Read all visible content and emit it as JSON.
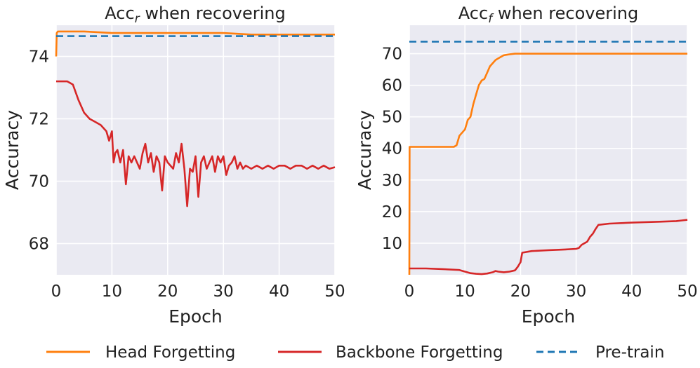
{
  "legend": {
    "items": [
      {
        "label": "Head Forgetting",
        "color": "#ff7f0e",
        "dash": false
      },
      {
        "label": "Backbone Forgetting",
        "color": "#d62728",
        "dash": false
      },
      {
        "label": "Pre-train",
        "color": "#1f77b4",
        "dash": true
      }
    ]
  },
  "chart_data": [
    {
      "type": "line",
      "title": "Accr when recovering",
      "title_main": "Acc",
      "title_sub": "r",
      "title_rest": " when recovering",
      "xlabel": "Epoch",
      "ylabel": "Accuracy",
      "xlim": [
        0,
        50
      ],
      "ylim": [
        67.0,
        75.0
      ],
      "xticks": [
        0,
        10,
        20,
        30,
        40,
        50
      ],
      "yticks": [
        68,
        70,
        72,
        74
      ],
      "grid": true,
      "series": [
        {
          "name": "Head Forgetting",
          "color": "#ff7f0e",
          "dash": false,
          "x": [
            0,
            0.1,
            0.3,
            5,
            10,
            15,
            20,
            25,
            30,
            35,
            40,
            45,
            50
          ],
          "y": [
            74.0,
            74.75,
            74.8,
            74.8,
            74.75,
            74.75,
            74.75,
            74.75,
            74.75,
            74.7,
            74.7,
            74.7,
            74.7
          ]
        },
        {
          "name": "Backbone Forgetting",
          "color": "#d62728",
          "dash": false,
          "x": [
            0,
            1,
            2,
            3,
            4,
            5,
            6,
            7,
            8,
            9,
            9.5,
            10,
            10.3,
            10.6,
            11,
            11.5,
            12,
            12.5,
            13,
            13.5,
            14,
            15,
            15.5,
            16,
            16.5,
            17,
            17.5,
            18,
            18.5,
            19,
            19.5,
            20,
            21,
            21.5,
            22,
            22.5,
            23,
            23.5,
            24,
            24.5,
            25,
            25.5,
            26,
            26.5,
            27,
            28,
            28.5,
            29,
            29.5,
            30,
            30.5,
            31,
            31.5,
            32,
            32.5,
            33,
            33.5,
            34,
            35,
            36,
            37,
            38,
            39,
            40,
            41,
            42,
            43,
            44,
            45,
            46,
            47,
            48,
            49,
            50
          ],
          "y": [
            73.2,
            73.2,
            73.2,
            73.1,
            72.6,
            72.2,
            72.0,
            71.9,
            71.8,
            71.6,
            71.3,
            71.6,
            70.6,
            70.9,
            71.0,
            70.6,
            71.0,
            69.9,
            70.8,
            70.6,
            70.8,
            70.4,
            70.9,
            71.2,
            70.6,
            70.9,
            70.3,
            70.8,
            70.6,
            69.7,
            70.8,
            70.6,
            70.4,
            70.9,
            70.6,
            71.2,
            70.4,
            69.2,
            70.4,
            70.3,
            70.8,
            69.5,
            70.6,
            70.8,
            70.4,
            70.8,
            70.3,
            70.8,
            70.6,
            70.8,
            70.2,
            70.5,
            70.6,
            70.8,
            70.4,
            70.6,
            70.4,
            70.5,
            70.4,
            70.5,
            70.4,
            70.5,
            70.4,
            70.5,
            70.5,
            70.4,
            70.5,
            70.5,
            70.4,
            70.5,
            70.4,
            70.5,
            70.4,
            70.45
          ]
        },
        {
          "name": "Pre-train",
          "color": "#1f77b4",
          "dash": true,
          "x": [
            0,
            50
          ],
          "y": [
            74.65,
            74.65
          ]
        }
      ]
    },
    {
      "type": "line",
      "title": "Accf when recovering",
      "title_main": "Acc",
      "title_sub": "f",
      "title_rest": " when recovering",
      "xlabel": "Epoch",
      "ylabel": "Accuracy",
      "xlim": [
        0,
        50
      ],
      "ylim": [
        0,
        79
      ],
      "xticks": [
        0,
        10,
        20,
        30,
        40,
        50
      ],
      "yticks": [
        10,
        20,
        30,
        40,
        50,
        60,
        70
      ],
      "grid": true,
      "series": [
        {
          "name": "Head Forgetting",
          "color": "#ff7f0e",
          "dash": false,
          "x": [
            0,
            0.05,
            0.2,
            8,
            8.5,
            9,
            10,
            10.5,
            11,
            11.5,
            12,
            12.5,
            13,
            13.5,
            14,
            14.5,
            15,
            15.5,
            16,
            17,
            18,
            19,
            20,
            21,
            25,
            30,
            35,
            40,
            45,
            50
          ],
          "y": [
            0,
            40.5,
            40.5,
            40.5,
            41,
            44,
            46,
            49,
            50,
            54,
            57,
            60,
            61.5,
            62,
            64,
            66,
            67,
            68,
            68.5,
            69.5,
            69.8,
            70,
            70,
            70,
            70,
            70,
            70,
            70,
            70,
            70
          ]
        },
        {
          "name": "Backbone Forgetting",
          "color": "#d62728",
          "dash": false,
          "x": [
            0,
            3,
            6,
            9,
            10,
            11,
            12,
            13,
            14,
            15,
            15.5,
            16,
            17,
            18,
            19,
            19.5,
            20,
            20.3,
            22,
            25,
            28,
            30,
            30.5,
            31,
            32,
            32.5,
            33,
            33.5,
            34,
            36,
            40,
            45,
            48,
            49,
            50
          ],
          "y": [
            2,
            2,
            1.8,
            1.5,
            1.0,
            0.5,
            0.3,
            0.2,
            0.4,
            0.8,
            1.2,
            1.0,
            0.8,
            1.0,
            1.4,
            2.5,
            4,
            7,
            7.5,
            7.8,
            8,
            8.2,
            8.5,
            9.5,
            10.5,
            12,
            13,
            14.5,
            15.8,
            16.2,
            16.5,
            16.8,
            17,
            17.2,
            17.4
          ]
        },
        {
          "name": "Pre-train",
          "color": "#1f77b4",
          "dash": true,
          "x": [
            0,
            50
          ],
          "y": [
            73.8,
            73.8
          ]
        }
      ]
    }
  ]
}
